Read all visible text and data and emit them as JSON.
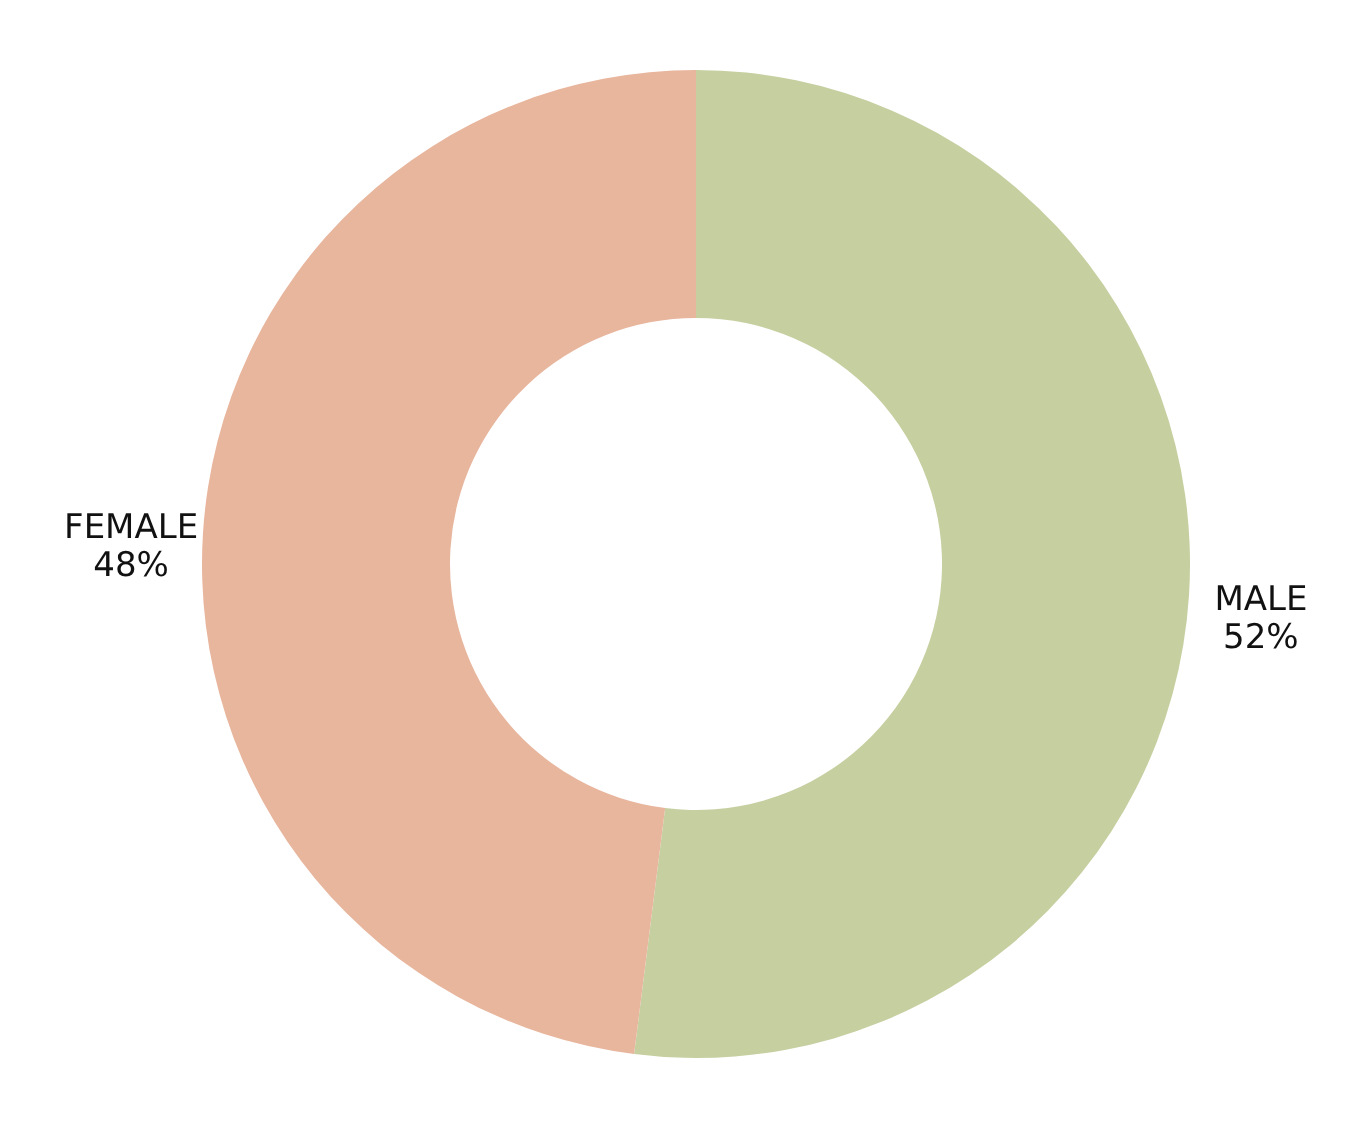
{
  "chart_data": {
    "type": "donut",
    "categories": [
      "MALE",
      "FEMALE"
    ],
    "values": [
      52,
      48
    ],
    "colors": [
      "#c6cfa0",
      "#e8b59d"
    ],
    "value_labels": [
      "52%",
      "48%"
    ]
  }
}
